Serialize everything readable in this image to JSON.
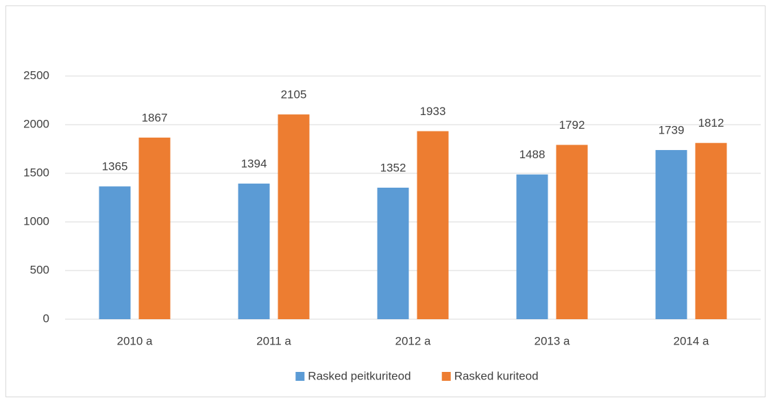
{
  "chart_data": {
    "type": "bar",
    "categories": [
      "2010 a",
      "2011 a",
      "2012 a",
      "2013 a",
      "2014 a"
    ],
    "series": [
      {
        "name": "Rasked peitkuriteod",
        "color": "#5b9bd5",
        "values": [
          1365,
          1394,
          1352,
          1488,
          1739
        ]
      },
      {
        "name": "Rasked kuriteod",
        "color": "#ed7d31",
        "values": [
          1867,
          2105,
          1933,
          1792,
          1812
        ]
      }
    ],
    "ylim": [
      0,
      2500
    ],
    "yticks": [
      0,
      500,
      1000,
      1500,
      2000,
      2500
    ],
    "grid": true,
    "legend": "bottom"
  }
}
